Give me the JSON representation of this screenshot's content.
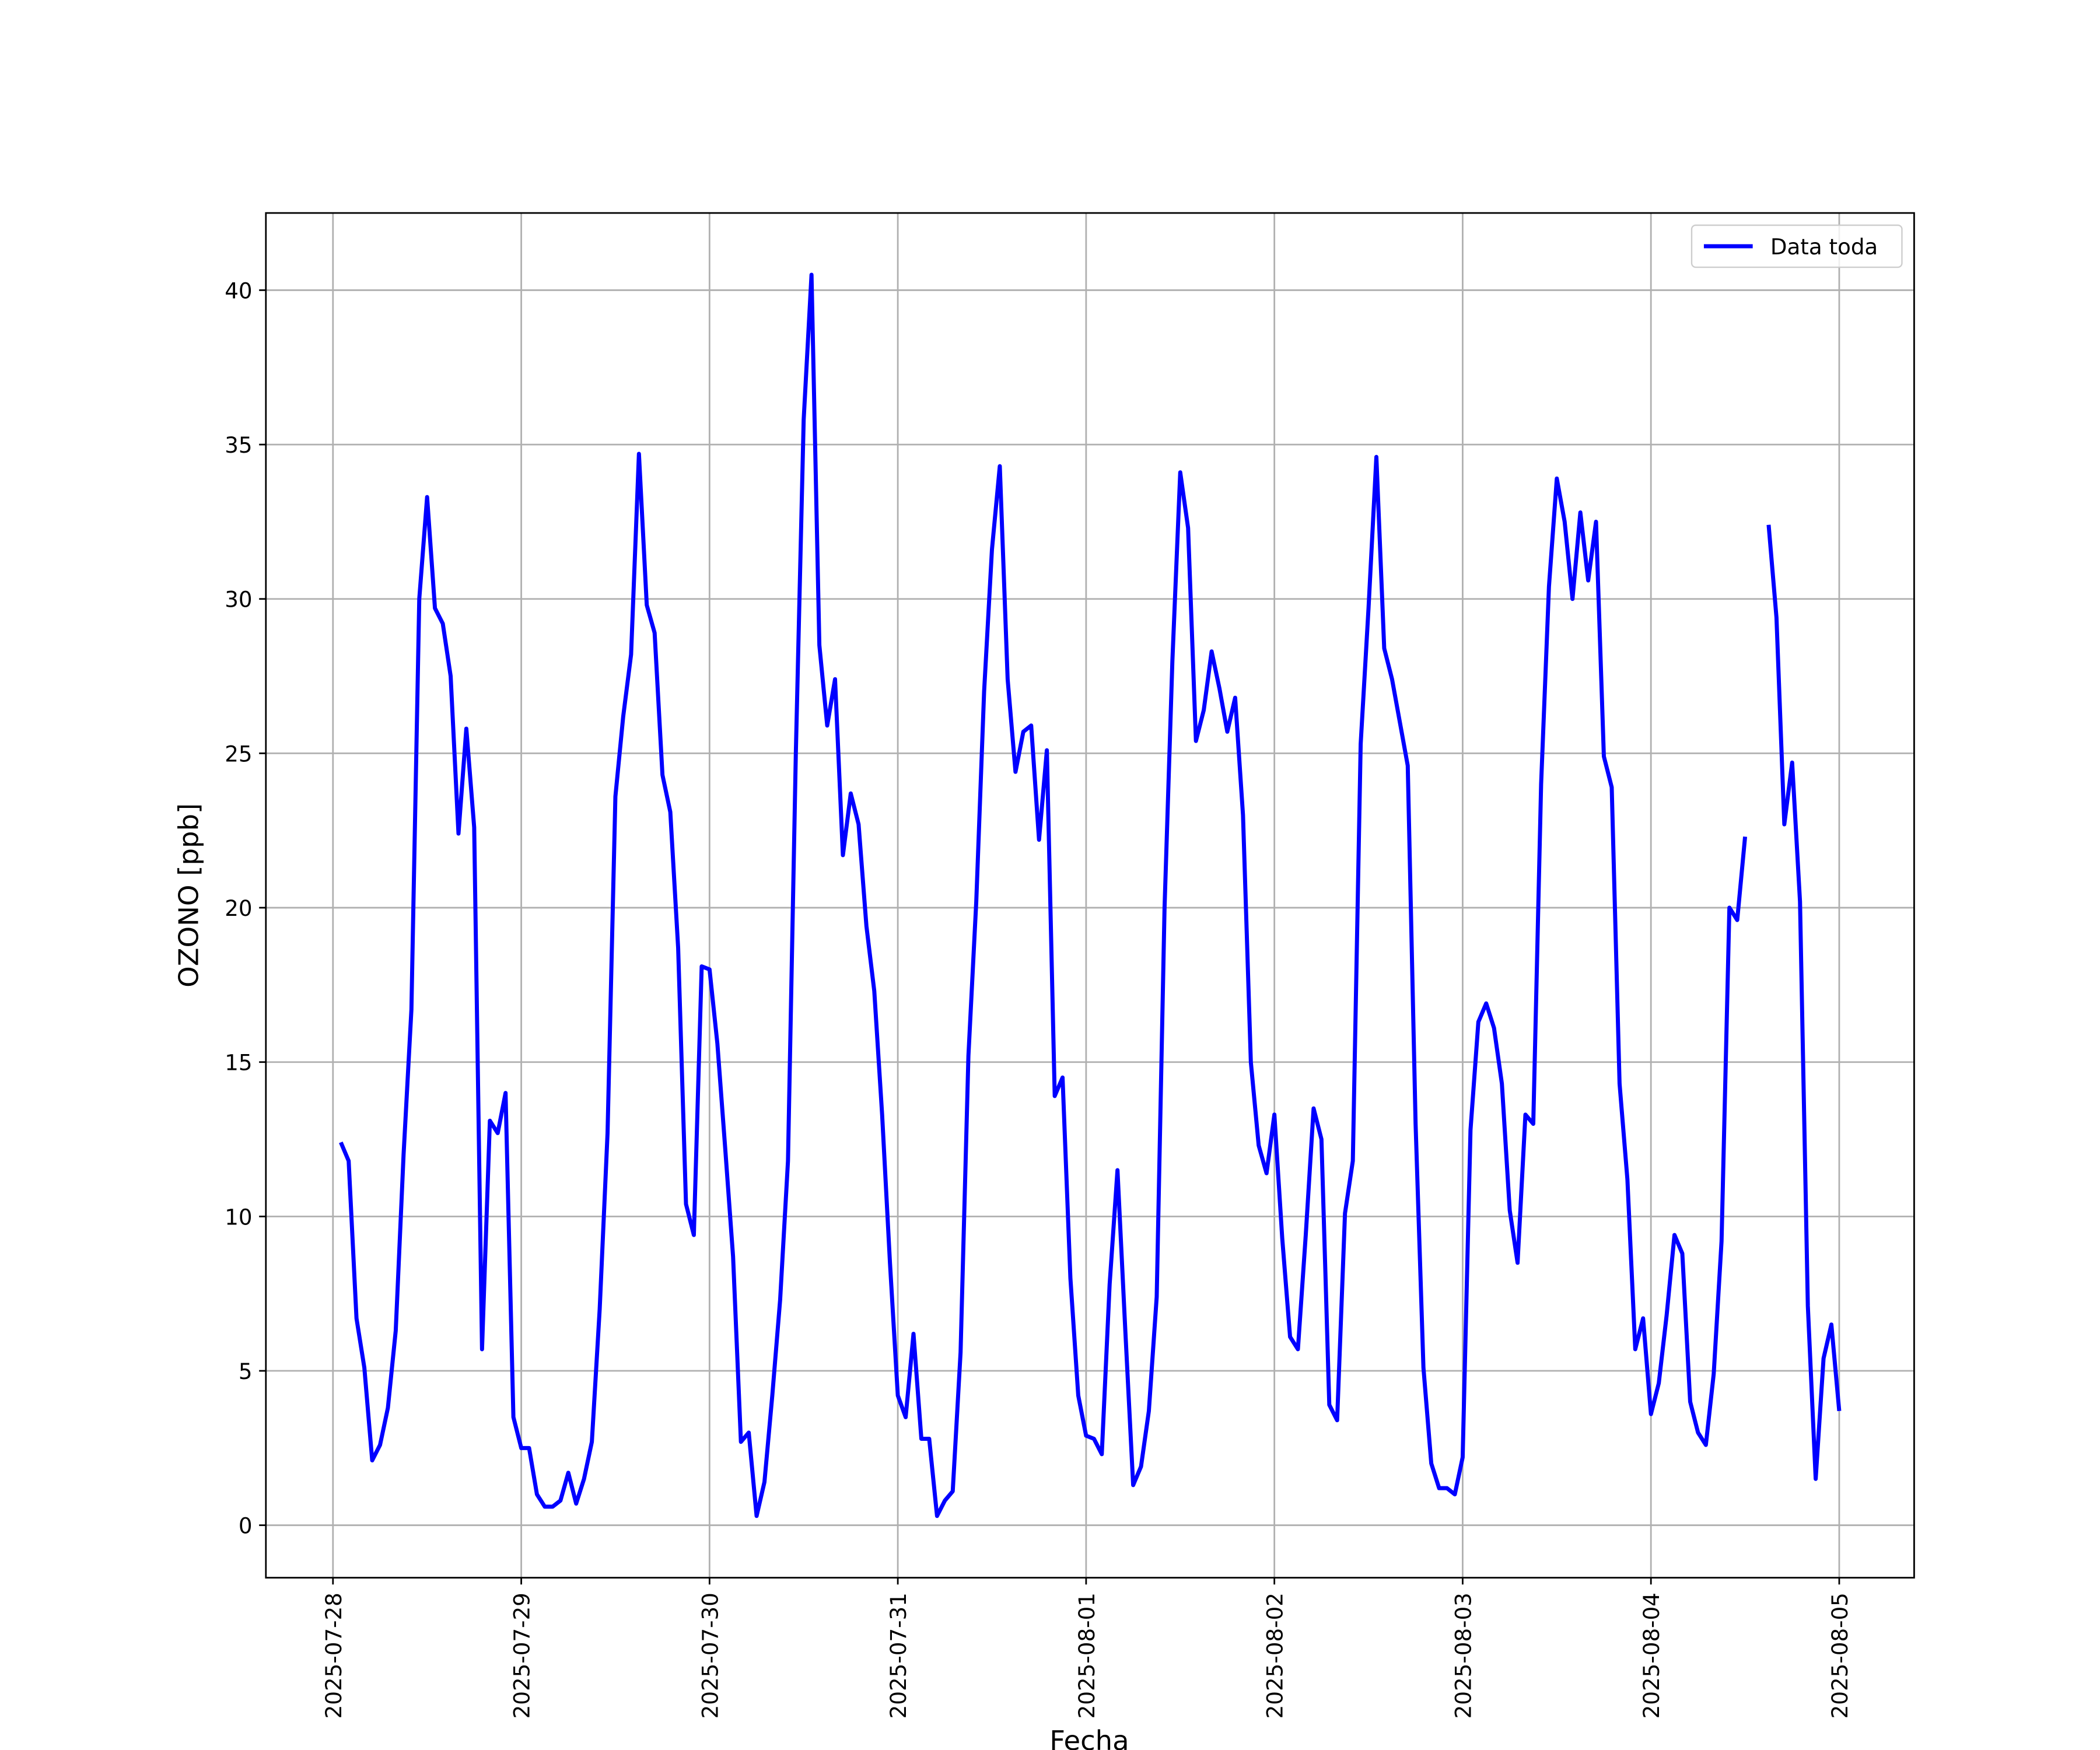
{
  "chart_data": {
    "type": "line",
    "xlabel": "Fecha",
    "ylabel": "OZONO [ppb]",
    "x": [
      "2025-07-28 01:00",
      "2025-07-28 02:00",
      "2025-07-28 03:00",
      "2025-07-28 04:00",
      "2025-07-28 05:00",
      "2025-07-28 06:00",
      "2025-07-28 07:00",
      "2025-07-28 08:00",
      "2025-07-28 09:00",
      "2025-07-28 10:00",
      "2025-07-28 11:00",
      "2025-07-28 12:00",
      "2025-07-28 13:00",
      "2025-07-28 14:00",
      "2025-07-28 15:00",
      "2025-07-28 16:00",
      "2025-07-28 17:00",
      "2025-07-28 18:00",
      "2025-07-28 19:00",
      "2025-07-28 20:00",
      "2025-07-28 21:00",
      "2025-07-28 22:00",
      "2025-07-28 23:00",
      "2025-07-29 00:00",
      "2025-07-29 01:00",
      "2025-07-29 02:00",
      "2025-07-29 03:00",
      "2025-07-29 04:00",
      "2025-07-29 05:00",
      "2025-07-29 06:00",
      "2025-07-29 07:00",
      "2025-07-29 08:00",
      "2025-07-29 09:00",
      "2025-07-29 10:00",
      "2025-07-29 11:00",
      "2025-07-29 12:00",
      "2025-07-29 13:00",
      "2025-07-29 14:00",
      "2025-07-29 15:00",
      "2025-07-29 16:00",
      "2025-07-29 17:00",
      "2025-07-29 18:00",
      "2025-07-29 19:00",
      "2025-07-29 20:00",
      "2025-07-29 21:00",
      "2025-07-29 22:00",
      "2025-07-29 23:00",
      "2025-07-30 00:00",
      "2025-07-30 01:00",
      "2025-07-30 02:00",
      "2025-07-30 03:00",
      "2025-07-30 04:00",
      "2025-07-30 05:00",
      "2025-07-30 06:00",
      "2025-07-30 07:00",
      "2025-07-30 08:00",
      "2025-07-30 09:00",
      "2025-07-30 10:00",
      "2025-07-30 11:00",
      "2025-07-30 12:00",
      "2025-07-30 13:00",
      "2025-07-30 14:00",
      "2025-07-30 15:00",
      "2025-07-30 16:00",
      "2025-07-30 17:00",
      "2025-07-30 18:00",
      "2025-07-30 19:00",
      "2025-07-30 20:00",
      "2025-07-30 21:00",
      "2025-07-30 22:00",
      "2025-07-30 23:00",
      "2025-07-31 00:00",
      "2025-07-31 01:00",
      "2025-07-31 02:00",
      "2025-07-31 03:00",
      "2025-07-31 04:00",
      "2025-07-31 05:00",
      "2025-07-31 06:00",
      "2025-07-31 07:00",
      "2025-07-31 08:00",
      "2025-07-31 09:00",
      "2025-07-31 10:00",
      "2025-07-31 11:00",
      "2025-07-31 12:00",
      "2025-07-31 13:00",
      "2025-07-31 14:00",
      "2025-07-31 15:00",
      "2025-07-31 16:00",
      "2025-07-31 17:00",
      "2025-07-31 18:00",
      "2025-07-31 19:00",
      "2025-07-31 20:00",
      "2025-07-31 21:00",
      "2025-07-31 22:00",
      "2025-07-31 23:00",
      "2025-08-01 00:00",
      "2025-08-01 01:00",
      "2025-08-01 02:00",
      "2025-08-01 03:00",
      "2025-08-01 04:00",
      "2025-08-01 05:00",
      "2025-08-01 06:00",
      "2025-08-01 07:00",
      "2025-08-01 08:00",
      "2025-08-01 09:00",
      "2025-08-01 10:00",
      "2025-08-01 11:00",
      "2025-08-01 12:00",
      "2025-08-01 13:00",
      "2025-08-01 14:00",
      "2025-08-01 15:00",
      "2025-08-01 16:00",
      "2025-08-01 17:00",
      "2025-08-01 18:00",
      "2025-08-01 19:00",
      "2025-08-01 20:00",
      "2025-08-01 21:00",
      "2025-08-01 22:00",
      "2025-08-01 23:00",
      "2025-08-02 00:00",
      "2025-08-02 01:00",
      "2025-08-02 02:00",
      "2025-08-02 03:00",
      "2025-08-02 04:00",
      "2025-08-02 05:00",
      "2025-08-02 06:00",
      "2025-08-02 07:00",
      "2025-08-02 08:00",
      "2025-08-02 09:00",
      "2025-08-02 10:00",
      "2025-08-02 11:00",
      "2025-08-02 12:00",
      "2025-08-02 13:00",
      "2025-08-02 14:00",
      "2025-08-02 15:00",
      "2025-08-02 16:00",
      "2025-08-02 17:00",
      "2025-08-02 18:00",
      "2025-08-02 19:00",
      "2025-08-02 20:00",
      "2025-08-02 21:00",
      "2025-08-02 22:00",
      "2025-08-02 23:00",
      "2025-08-03 00:00",
      "2025-08-03 01:00",
      "2025-08-03 02:00",
      "2025-08-03 03:00",
      "2025-08-03 04:00",
      "2025-08-03 05:00",
      "2025-08-03 06:00",
      "2025-08-03 07:00",
      "2025-08-03 08:00",
      "2025-08-03 09:00",
      "2025-08-03 10:00",
      "2025-08-03 11:00",
      "2025-08-03 12:00",
      "2025-08-03 13:00",
      "2025-08-03 14:00",
      "2025-08-03 15:00",
      "2025-08-03 16:00",
      "2025-08-03 17:00",
      "2025-08-03 18:00",
      "2025-08-03 19:00",
      "2025-08-03 20:00",
      "2025-08-03 21:00",
      "2025-08-03 22:00",
      "2025-08-03 23:00",
      "2025-08-04 00:00",
      "2025-08-04 01:00",
      "2025-08-04 02:00",
      "2025-08-04 03:00",
      "2025-08-04 04:00",
      "2025-08-04 05:00",
      "2025-08-04 06:00",
      "2025-08-04 07:00",
      "2025-08-04 08:00",
      "2025-08-04 09:00",
      "2025-08-04 10:00",
      "2025-08-04 11:00",
      "2025-08-04 12:00",
      "2025-08-04 13:00",
      "2025-08-04 14:00",
      "2025-08-04 15:00",
      "2025-08-04 16:00",
      "2025-08-04 17:00",
      "2025-08-04 18:00",
      "2025-08-04 19:00",
      "2025-08-04 20:00",
      "2025-08-04 21:00",
      "2025-08-04 22:00",
      "2025-08-04 23:00",
      "2025-08-05 00:00"
    ],
    "series": [
      {
        "name": "Data toda",
        "color": "#0000ff",
        "values": [
          12.4,
          11.8,
          6.7,
          5.1,
          2.1,
          2.6,
          3.8,
          6.3,
          12,
          16.7,
          30,
          33.3,
          29.7,
          29.2,
          27.5,
          22.4,
          25.8,
          22.6,
          5.7,
          13.1,
          12.7,
          14.0,
          3.5,
          2.5,
          2.5,
          1.0,
          0.6,
          0.6,
          0.8,
          1.7,
          0.7,
          1.5,
          2.7,
          7,
          12.7,
          23.6,
          26.2,
          28.2,
          34.7,
          29.8,
          28.9,
          24.3,
          23.1,
          18.7,
          10.4,
          9.4,
          18.1,
          18.0,
          15.6,
          12.2,
          8.7,
          2.7,
          3.0,
          0.3,
          1.4,
          4.2,
          7.3,
          11.8,
          25,
          35.8,
          40.5,
          28.5,
          25.9,
          27.4,
          21.7,
          23.7,
          22.7,
          19.4,
          17.3,
          13.3,
          8.5,
          4.2,
          3.5,
          6.2,
          2.8,
          2.8,
          0.3,
          0.8,
          1.1,
          5.6,
          15.2,
          20.2,
          27,
          31.6,
          34.3,
          27.4,
          24.4,
          25.7,
          25.9,
          22.2,
          25.1,
          13.9,
          14.5,
          8,
          4.2,
          2.9,
          2.8,
          2.3,
          7.8,
          11.5,
          6.3,
          1.3,
          1.9,
          3.7,
          7.4,
          20,
          28,
          34.1,
          32.3,
          25.4,
          26.4,
          28.3,
          27.1,
          25.7,
          26.8,
          23,
          15,
          12.3,
          11.4,
          13.3,
          9.3,
          6.1,
          5.7,
          9.4,
          13.5,
          12.5,
          3.9,
          3.4,
          10.1,
          11.8,
          25.3,
          29.7,
          34.6,
          28.4,
          27.4,
          26,
          24.6,
          13,
          5.1,
          2.0,
          1.2,
          1.2,
          1.0,
          2.2,
          12.8,
          16.3,
          16.9,
          16.1,
          14.3,
          10.2,
          8.5,
          13.3,
          13.0,
          24,
          30.4,
          33.9,
          32.5,
          30,
          32.8,
          30.6,
          32.5,
          24.9,
          23.9,
          14.3,
          11.2,
          5.7,
          6.7,
          3.6,
          4.6,
          6.8,
          9.4,
          8.8,
          4.0,
          3.0,
          2.6,
          4.9,
          9.2,
          20.0,
          19.6,
          22.3,
          null,
          null,
          32.4,
          29.4,
          22.7,
          24.7,
          20.2,
          7.1,
          1.5,
          5.4,
          6.5,
          3.7
        ]
      }
    ],
    "xlim": [
      "2025-07-27 15:27",
      "2025-08-05 09:33"
    ],
    "xticks": [
      "2025-07-28",
      "2025-07-29",
      "2025-07-30",
      "2025-07-31",
      "2025-08-01",
      "2025-08-02",
      "2025-08-03",
      "2025-08-04",
      "2025-08-05"
    ],
    "ylim": [
      -1.7,
      42.5
    ],
    "yticks": [
      0,
      5,
      10,
      15,
      20,
      25,
      30,
      35,
      40
    ],
    "grid": true,
    "legend": "upper right"
  }
}
